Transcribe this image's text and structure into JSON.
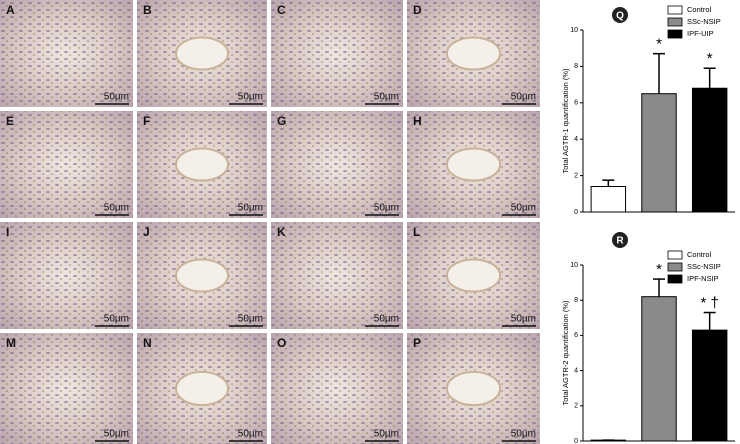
{
  "figure_panels": [
    {
      "label": "A",
      "scale": "50µm"
    },
    {
      "label": "B",
      "scale": "50µm"
    },
    {
      "label": "C",
      "scale": "50µm"
    },
    {
      "label": "D",
      "scale": "50µm"
    },
    {
      "label": "E",
      "scale": "50µm"
    },
    {
      "label": "F",
      "scale": "50µm"
    },
    {
      "label": "G",
      "scale": "50µm"
    },
    {
      "label": "H",
      "scale": "50µm"
    },
    {
      "label": "I",
      "scale": "50µm"
    },
    {
      "label": "J",
      "scale": "50µm"
    },
    {
      "label": "K",
      "scale": "50µm"
    },
    {
      "label": "L",
      "scale": "50µm"
    },
    {
      "label": "M",
      "scale": "50µm"
    },
    {
      "label": "N",
      "scale": "50µm"
    },
    {
      "label": "O",
      "scale": "50µm"
    },
    {
      "label": "P",
      "scale": "50µm"
    }
  ],
  "chart_data": [
    {
      "type": "bar",
      "panel": "Q",
      "ylabel": "Total AGTR-1 quantification (%)",
      "categories": [
        "Control",
        "SSc-NSIP",
        "IPF-UIP"
      ],
      "values": [
        1.4,
        6.5,
        6.8
      ],
      "errors": [
        0.35,
        2.2,
        1.1
      ],
      "colors": [
        "#ffffff",
        "#8a8a8a",
        "#000000"
      ],
      "bar_annotations": [
        null,
        "*",
        "*"
      ],
      "ylim": [
        0,
        10
      ],
      "yticks": [
        0,
        2,
        4,
        6,
        8,
        10
      ],
      "legend": "top-right"
    },
    {
      "type": "bar",
      "panel": "R",
      "ylabel": "Total AGTR-2 quantification (%)",
      "categories": [
        "Control",
        "SSc-NSIP",
        "IPF-NSIP"
      ],
      "values": [
        0.05,
        8.2,
        6.3
      ],
      "errors": [
        0,
        1.0,
        1.0
      ],
      "colors": [
        "#ffffff",
        "#8a8a8a",
        "#000000"
      ],
      "bar_annotations": [
        null,
        "*",
        "* †"
      ],
      "ylim": [
        0,
        10
      ],
      "yticks": [
        0,
        2,
        4,
        6,
        8,
        10
      ],
      "legend": "top-right"
    }
  ]
}
